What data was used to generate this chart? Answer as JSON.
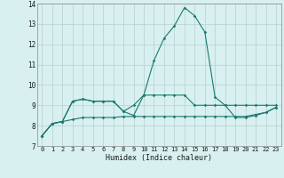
{
  "xlabel": "Humidex (Indice chaleur)",
  "x": [
    0,
    1,
    2,
    3,
    4,
    5,
    6,
    7,
    8,
    9,
    10,
    11,
    12,
    13,
    14,
    15,
    16,
    17,
    18,
    19,
    20,
    21,
    22,
    23
  ],
  "line1": [
    7.5,
    8.1,
    8.2,
    9.2,
    9.3,
    9.2,
    9.2,
    9.2,
    8.7,
    9.0,
    9.5,
    9.5,
    9.5,
    9.5,
    9.5,
    9.0,
    9.0,
    9.0,
    9.0,
    9.0,
    9.0,
    9.0,
    9.0,
    9.0
  ],
  "line2": [
    7.5,
    8.1,
    8.2,
    8.3,
    8.4,
    8.4,
    8.4,
    8.4,
    8.45,
    8.45,
    8.45,
    8.45,
    8.45,
    8.45,
    8.45,
    8.45,
    8.45,
    8.45,
    8.45,
    8.45,
    8.45,
    8.55,
    8.65,
    8.9
  ],
  "line3": [
    7.5,
    8.1,
    8.2,
    9.2,
    9.3,
    9.2,
    9.2,
    9.2,
    8.7,
    8.5,
    9.5,
    11.2,
    12.3,
    12.9,
    13.8,
    13.4,
    12.6,
    9.4,
    9.0,
    8.4,
    8.4,
    8.5,
    8.65,
    8.9
  ],
  "line_color": "#1a7a6e",
  "bg_color": "#d8f0f0",
  "grid_major_color": "#c8d8d8",
  "grid_minor_color": "#e0ecec",
  "ylim": [
    7,
    14
  ],
  "xlim": [
    -0.5,
    23.5
  ],
  "yticks": [
    7,
    8,
    9,
    10,
    11,
    12,
    13,
    14
  ],
  "xticks": [
    0,
    1,
    2,
    3,
    4,
    5,
    6,
    7,
    8,
    9,
    10,
    11,
    12,
    13,
    14,
    15,
    16,
    17,
    18,
    19,
    20,
    21,
    22,
    23
  ]
}
